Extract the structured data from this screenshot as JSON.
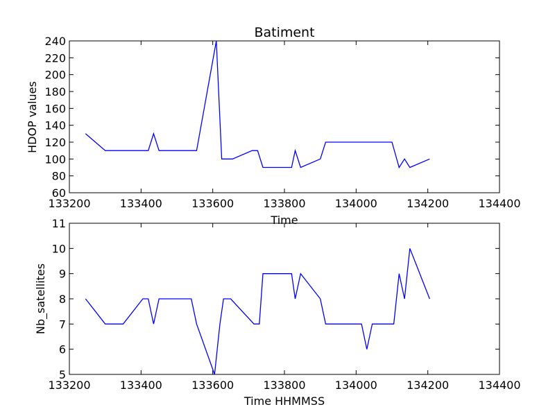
{
  "chart_data": [
    {
      "type": "line",
      "title": "Batiment",
      "xlabel": "Time",
      "ylabel": "HDOP values",
      "xlim": [
        133200,
        134400
      ],
      "ylim": [
        60,
        240
      ],
      "xticks": [
        "133200",
        "133400",
        "133600",
        "133800",
        "134000",
        "134200",
        "134400"
      ],
      "yticks": [
        "60",
        "80",
        "100",
        "120",
        "140",
        "160",
        "180",
        "200",
        "220",
        "240"
      ],
      "grid": false,
      "color": "#0000ff",
      "x": [
        133245,
        133300,
        133420,
        133435,
        133450,
        133555,
        133610,
        133625,
        133655,
        133710,
        133725,
        133740,
        133820,
        133830,
        133845,
        133900,
        133915,
        134100,
        134120,
        134135,
        134150,
        134205
      ],
      "y": [
        130,
        110,
        110,
        130,
        110,
        110,
        240,
        100,
        100,
        110,
        110,
        90,
        90,
        110,
        90,
        100,
        120,
        120,
        90,
        100,
        90,
        100
      ]
    },
    {
      "type": "line",
      "title": "",
      "xlabel": "Time HHMMSS",
      "ylabel": "Nb_satellites",
      "xlim": [
        133200,
        134400
      ],
      "ylim": [
        5,
        11
      ],
      "xticks": [
        "133200",
        "133400",
        "133600",
        "133800",
        "134000",
        "134200",
        "134400"
      ],
      "yticks": [
        "5",
        "6",
        "7",
        "8",
        "9",
        "10",
        "11"
      ],
      "grid": false,
      "color": "#0000ff",
      "x": [
        133245,
        133300,
        133350,
        133405,
        133420,
        133435,
        133450,
        133540,
        133555,
        133605,
        133620,
        133630,
        133650,
        133715,
        133730,
        133740,
        133820,
        133830,
        133845,
        133900,
        133915,
        134015,
        134030,
        134045,
        134105,
        134120,
        134135,
        134150,
        134205
      ],
      "y": [
        8,
        7,
        7,
        8,
        8,
        7,
        8,
        8,
        7,
        5,
        7,
        8,
        8,
        7,
        7,
        9,
        9,
        8,
        9,
        8,
        7,
        7,
        6,
        7,
        7,
        9,
        8,
        10,
        8
      ]
    }
  ]
}
